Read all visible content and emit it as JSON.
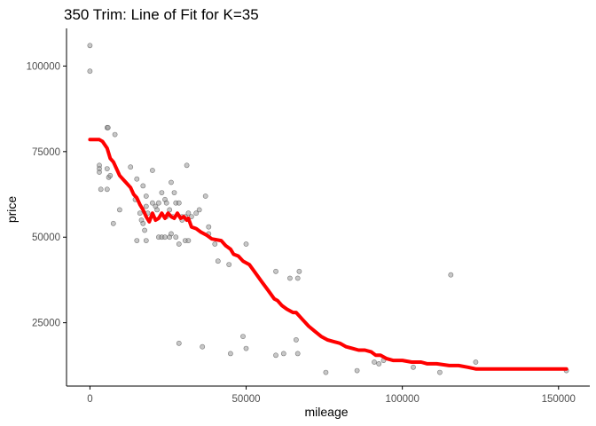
{
  "chart_data": {
    "type": "scatter",
    "title": "350 Trim: Line of Fit for K=35",
    "xlabel": "mileage",
    "ylabel": "price",
    "xlim": [
      -7500,
      160000
    ],
    "ylim": [
      6500,
      111000
    ],
    "x_ticks": [
      0,
      50000,
      100000,
      150000
    ],
    "x_tick_labels": [
      "0",
      "50000",
      "100000",
      "150000"
    ],
    "y_ticks": [
      25000,
      50000,
      75000,
      100000
    ],
    "y_tick_labels": [
      "25000",
      "50000",
      "75000",
      "100000"
    ],
    "grid": false,
    "legend": "none",
    "colors": {
      "points_fill": "#999999",
      "points_stroke": "#333333",
      "fit_line": "#ff0000",
      "axis": "#000000",
      "tick_text": "#4d4d4d"
    },
    "series": [
      {
        "type": "scatter",
        "points": [
          [
            0,
            106000
          ],
          [
            0,
            98500
          ],
          [
            5500,
            82000
          ],
          [
            5800,
            82000
          ],
          [
            8000,
            80000
          ],
          [
            3000,
            71000
          ],
          [
            3000,
            70000
          ],
          [
            3000,
            69000
          ],
          [
            5500,
            70000
          ],
          [
            6000,
            67500
          ],
          [
            6500,
            68000
          ],
          [
            13000,
            70500
          ],
          [
            15000,
            67000
          ],
          [
            3500,
            64000
          ],
          [
            5500,
            64000
          ],
          [
            7500,
            54000
          ],
          [
            9500,
            58000
          ],
          [
            17000,
            65000
          ],
          [
            18000,
            62000
          ],
          [
            20000,
            69500
          ],
          [
            14500,
            61000
          ],
          [
            16000,
            57000
          ],
          [
            16500,
            55000
          ],
          [
            17000,
            54000
          ],
          [
            18000,
            59000
          ],
          [
            18500,
            57000
          ],
          [
            20000,
            60000
          ],
          [
            21000,
            59000
          ],
          [
            21500,
            58000
          ],
          [
            22000,
            60000
          ],
          [
            23000,
            63000
          ],
          [
            24000,
            61000
          ],
          [
            24500,
            60000
          ],
          [
            25500,
            58000
          ],
          [
            26000,
            66000
          ],
          [
            27000,
            63000
          ],
          [
            27500,
            60000
          ],
          [
            28500,
            60000
          ],
          [
            29500,
            56000
          ],
          [
            30500,
            56000
          ],
          [
            31000,
            71000
          ],
          [
            31500,
            57000
          ],
          [
            24500,
            56000
          ],
          [
            26500,
            56000
          ],
          [
            29500,
            55000
          ],
          [
            15000,
            49000
          ],
          [
            17500,
            52000
          ],
          [
            18000,
            49000
          ],
          [
            22000,
            50000
          ],
          [
            23000,
            50000
          ],
          [
            24000,
            50000
          ],
          [
            25500,
            50000
          ],
          [
            26000,
            51000
          ],
          [
            27500,
            50000
          ],
          [
            28500,
            48000
          ],
          [
            30500,
            49000
          ],
          [
            31500,
            49000
          ],
          [
            32500,
            56000
          ],
          [
            34000,
            57000
          ],
          [
            35000,
            58000
          ],
          [
            37000,
            62000
          ],
          [
            38000,
            53000
          ],
          [
            38000,
            51000
          ],
          [
            40000,
            48000
          ],
          [
            41000,
            43000
          ],
          [
            44500,
            42000
          ],
          [
            50000,
            48000
          ],
          [
            28500,
            19000
          ],
          [
            36000,
            18000
          ],
          [
            45000,
            16000
          ],
          [
            49000,
            21000
          ],
          [
            50000,
            17500
          ],
          [
            59500,
            40000
          ],
          [
            59500,
            15500
          ],
          [
            62000,
            16000
          ],
          [
            64000,
            38000
          ],
          [
            66500,
            38000
          ],
          [
            67000,
            40000
          ],
          [
            66000,
            20000
          ],
          [
            66500,
            16000
          ],
          [
            75500,
            10500
          ],
          [
            85500,
            11000
          ],
          [
            91000,
            13500
          ],
          [
            92500,
            13000
          ],
          [
            94000,
            14000
          ],
          [
            103500,
            12000
          ],
          [
            112000,
            10500
          ],
          [
            115500,
            39000
          ],
          [
            123500,
            13500
          ],
          [
            152500,
            11000
          ]
        ]
      },
      {
        "type": "line",
        "name": "",
        "points": [
          [
            0,
            78500
          ],
          [
            3000,
            78500
          ],
          [
            4000,
            78000
          ],
          [
            5500,
            76000
          ],
          [
            6500,
            73000
          ],
          [
            7500,
            72000
          ],
          [
            8500,
            70000
          ],
          [
            9500,
            68000
          ],
          [
            11000,
            66500
          ],
          [
            13000,
            64500
          ],
          [
            14000,
            62500
          ],
          [
            15000,
            61500
          ],
          [
            16000,
            59500
          ],
          [
            17000,
            58000
          ],
          [
            18000,
            56000
          ],
          [
            19000,
            54500
          ],
          [
            20000,
            57000
          ],
          [
            21000,
            55000
          ],
          [
            22000,
            55500
          ],
          [
            23000,
            57000
          ],
          [
            24000,
            55500
          ],
          [
            25000,
            57000
          ],
          [
            26000,
            56000
          ],
          [
            27000,
            55500
          ],
          [
            28000,
            57000
          ],
          [
            29000,
            55500
          ],
          [
            30000,
            56000
          ],
          [
            31000,
            55000
          ],
          [
            31500,
            55500
          ],
          [
            32500,
            53000
          ],
          [
            34000,
            52500
          ],
          [
            35500,
            51500
          ],
          [
            37500,
            50500
          ],
          [
            39000,
            49500
          ],
          [
            42000,
            49000
          ],
          [
            43500,
            47500
          ],
          [
            45000,
            46500
          ],
          [
            46000,
            45000
          ],
          [
            47500,
            44500
          ],
          [
            49000,
            43000
          ],
          [
            51000,
            42000
          ],
          [
            53000,
            39500
          ],
          [
            55000,
            37000
          ],
          [
            57000,
            34500
          ],
          [
            59000,
            32000
          ],
          [
            60000,
            31500
          ],
          [
            61500,
            30000
          ],
          [
            63000,
            29000
          ],
          [
            65000,
            28000
          ],
          [
            66000,
            28000
          ],
          [
            68000,
            26000
          ],
          [
            70000,
            24000
          ],
          [
            72000,
            22500
          ],
          [
            74000,
            21000
          ],
          [
            76000,
            20000
          ],
          [
            78000,
            19500
          ],
          [
            80000,
            19000
          ],
          [
            82000,
            18000
          ],
          [
            84000,
            17500
          ],
          [
            86000,
            17000
          ],
          [
            88000,
            17000
          ],
          [
            90000,
            16500
          ],
          [
            91500,
            15500
          ],
          [
            93000,
            15500
          ],
          [
            95000,
            14500
          ],
          [
            97000,
            14000
          ],
          [
            100000,
            14000
          ],
          [
            103000,
            13500
          ],
          [
            106000,
            13500
          ],
          [
            108000,
            13000
          ],
          [
            111000,
            13000
          ],
          [
            115000,
            12500
          ],
          [
            118000,
            12500
          ],
          [
            121000,
            12000
          ],
          [
            123500,
            11500
          ],
          [
            126000,
            11500
          ],
          [
            152500,
            11500
          ]
        ]
      }
    ]
  }
}
